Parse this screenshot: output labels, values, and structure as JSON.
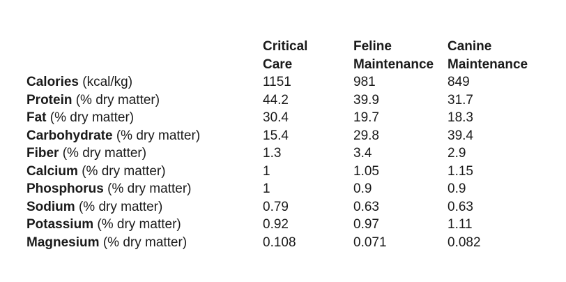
{
  "table": {
    "header": {
      "columns": [
        {
          "line1": "Critical",
          "line2": "Care"
        },
        {
          "line1": "Feline",
          "line2": "Maintenance"
        },
        {
          "line1": "Canine",
          "line2": "Maintenance"
        }
      ]
    },
    "rows": [
      {
        "nutrient": "Calories",
        "unit": "(kcal/kg)",
        "values": [
          "1151",
          "981",
          "849"
        ]
      },
      {
        "nutrient": "Protein",
        "unit": "(% dry matter)",
        "values": [
          "44.2",
          "39.9",
          "31.7"
        ]
      },
      {
        "nutrient": "Fat",
        "unit": "(% dry matter)",
        "values": [
          "30.4",
          "19.7",
          "18.3"
        ]
      },
      {
        "nutrient": "Carbohydrate",
        "unit": "(% dry matter)",
        "values": [
          "15.4",
          "29.8",
          "39.4"
        ]
      },
      {
        "nutrient": "Fiber",
        "unit": "(% dry matter)",
        "values": [
          "1.3",
          "3.4",
          "2.9"
        ]
      },
      {
        "nutrient": "Calcium",
        "unit": "(% dry matter)",
        "values": [
          "1",
          "1.05",
          "1.15"
        ]
      },
      {
        "nutrient": "Phosphorus",
        "unit": "(% dry matter)",
        "values": [
          "1",
          "0.9",
          "0.9"
        ]
      },
      {
        "nutrient": "Sodium",
        "unit": "(% dry matter)",
        "values": [
          "0.79",
          "0.63",
          "0.63"
        ]
      },
      {
        "nutrient": "Potassium",
        "unit": "(% dry matter)",
        "values": [
          "0.92",
          "0.97",
          "1.11"
        ]
      },
      {
        "nutrient": "Magnesium",
        "unit": "(% dry matter)",
        "values": [
          "0.108",
          "0.071",
          "0.082"
        ]
      }
    ],
    "text_color": "#1a1a1a",
    "background_color": "#ffffff"
  }
}
